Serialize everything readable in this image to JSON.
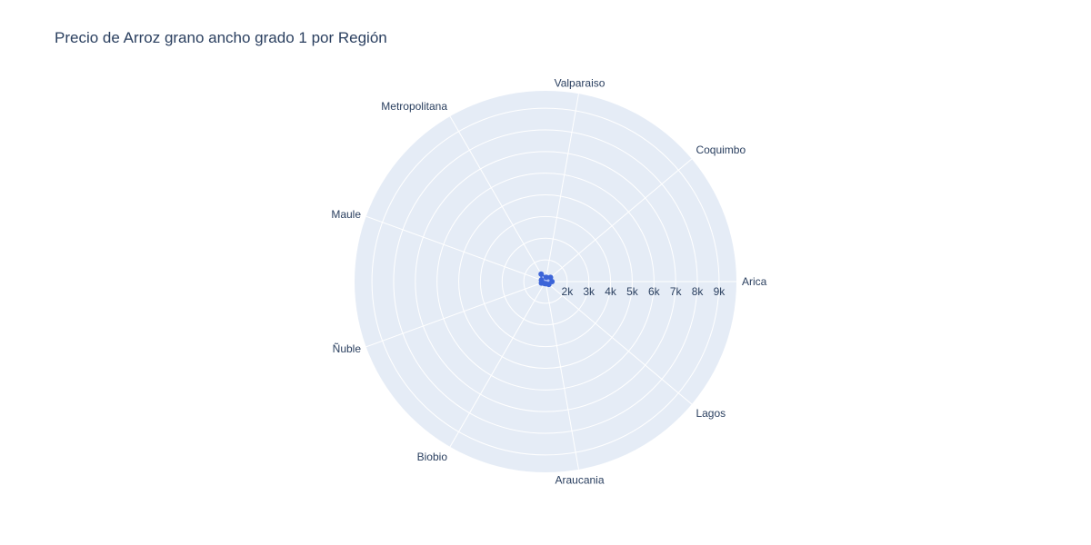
{
  "chart_data": {
    "type": "radar",
    "title": "Precio de Arroz grano ancho grado 1 por Región",
    "categories": [
      "Arica",
      "Coquimbo",
      "Valparaiso",
      "Metropolitana",
      "Maule",
      "Ñuble",
      "Biobio",
      "Araucania",
      "Lagos"
    ],
    "values": [
      1300,
      1300,
      1200,
      1400,
      1200,
      1200,
      1100,
      1100,
      1200
    ],
    "radial_range": [
      1000,
      9800
    ],
    "radial_ticks": [
      2000,
      3000,
      4000,
      5000,
      6000,
      7000,
      8000,
      9000
    ],
    "radial_tick_labels": [
      "2k",
      "3k",
      "4k",
      "5k",
      "6k",
      "7k",
      "8k",
      "9k"
    ],
    "fill": true,
    "grid": true,
    "colors": {
      "line": "#3c64d8",
      "fill": "#7f97ee",
      "background": "#e5ecf6",
      "grid": "#ffffff",
      "text": "#2a3f5f"
    }
  }
}
